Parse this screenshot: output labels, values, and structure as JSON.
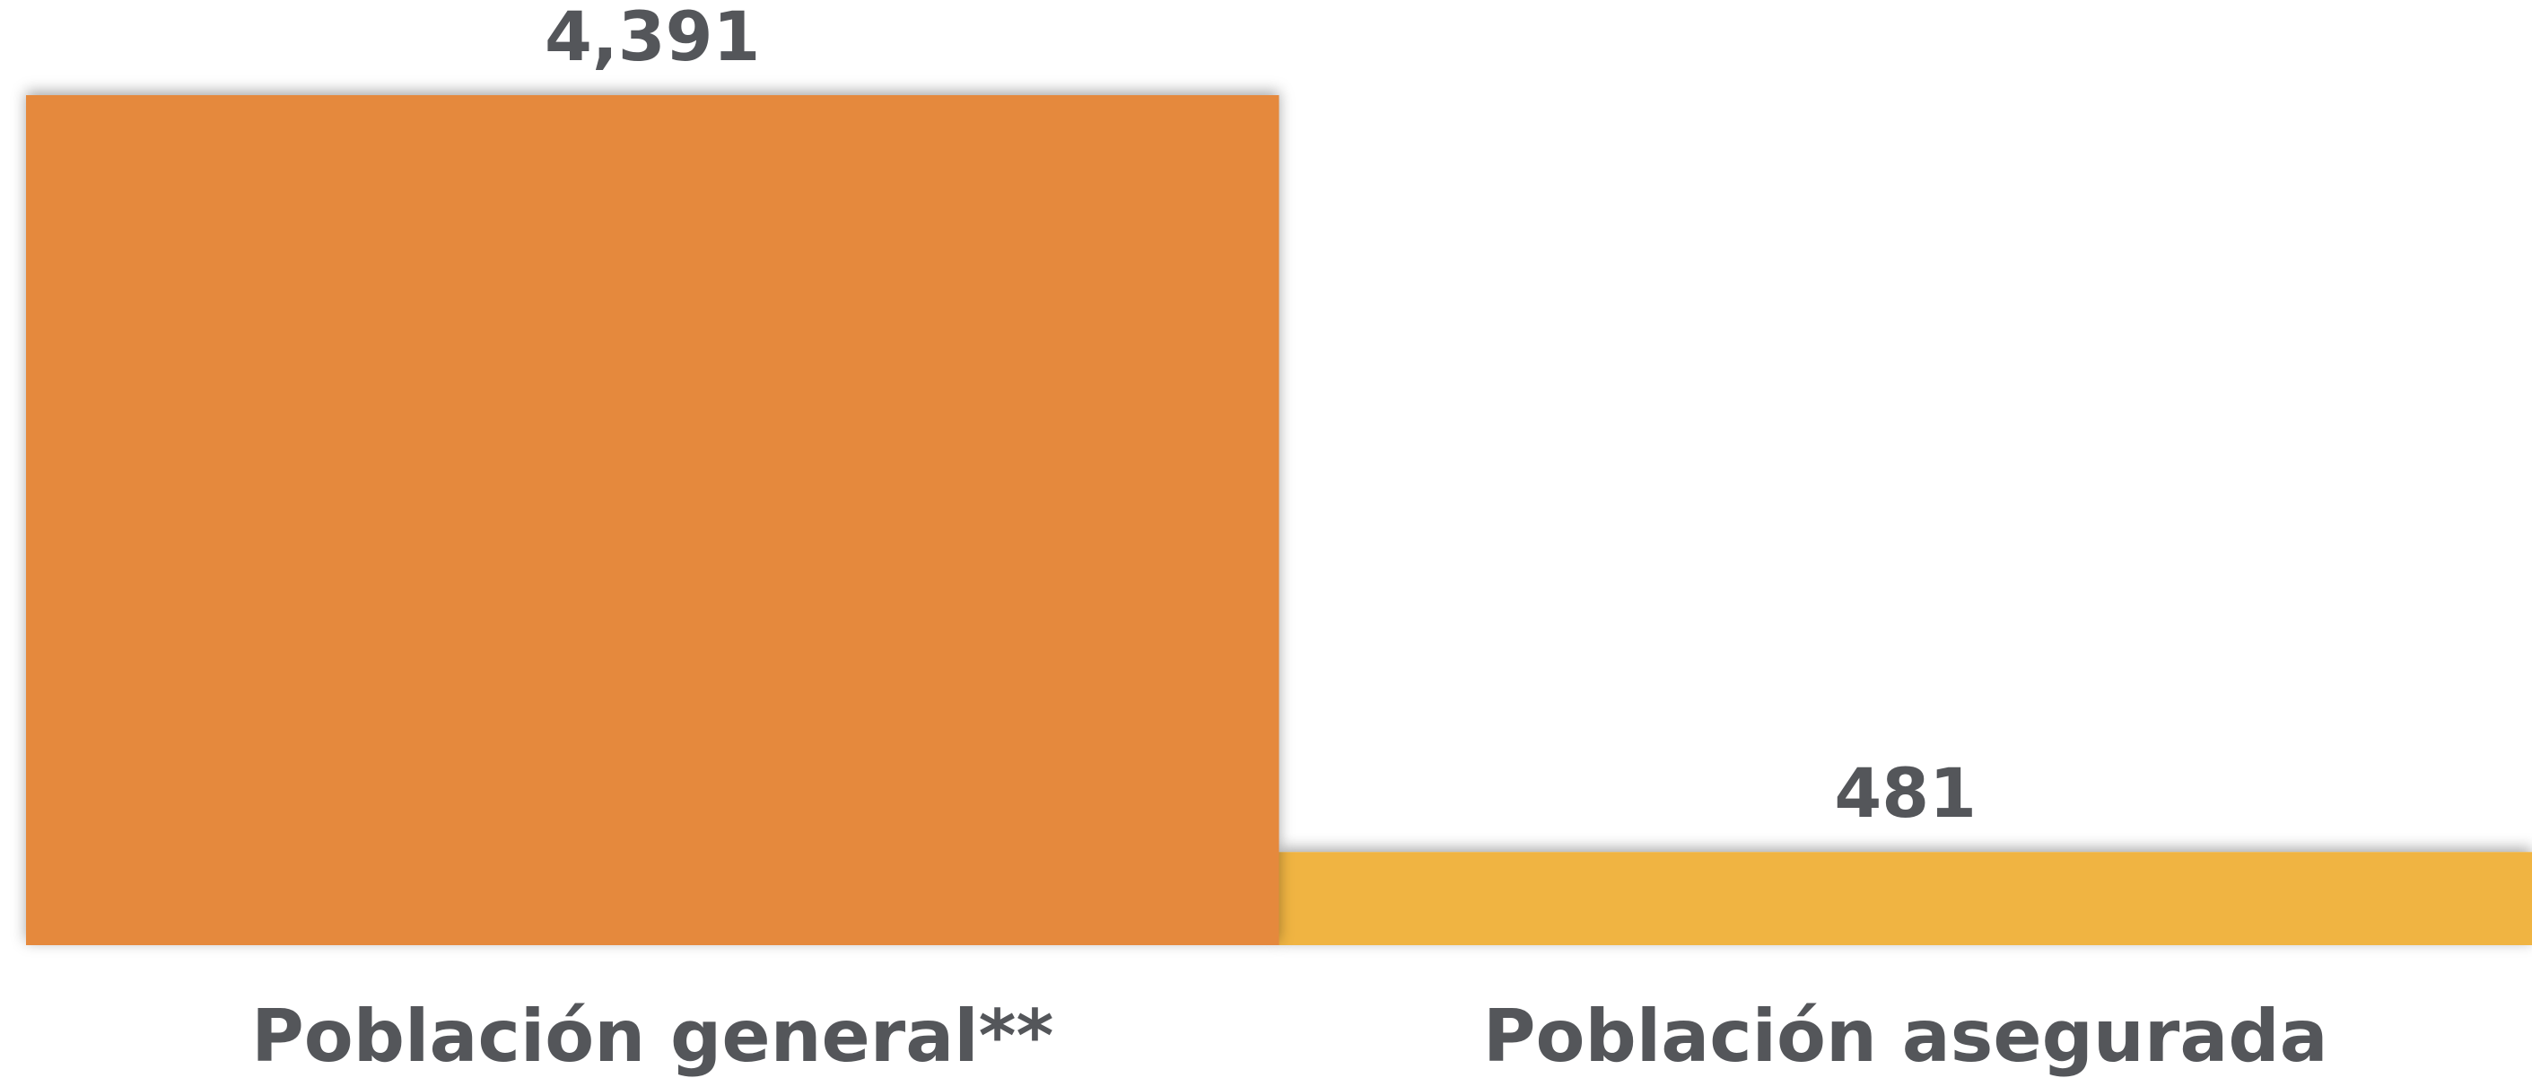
{
  "chart_data": {
    "type": "bar",
    "categories": [
      "Población general**",
      "Población asegurada"
    ],
    "values": [
      4391,
      481
    ],
    "value_labels": [
      "4,391",
      "481"
    ],
    "colors": [
      "#e5893e",
      "#f0b443"
    ]
  }
}
